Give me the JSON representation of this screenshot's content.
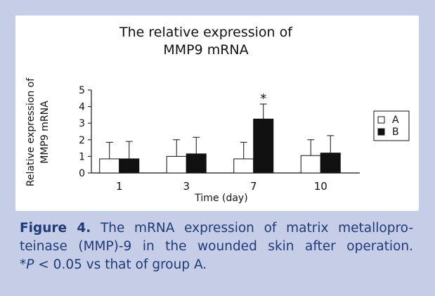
{
  "chart_data": {
    "type": "bar",
    "title": [
      "The relative expression of",
      "MMP9 mRNA"
    ],
    "y_label": [
      "Relative expression of",
      "MMP9 mRNA"
    ],
    "x_label": "Time (day)",
    "categories": [
      "1",
      "3",
      "7",
      "10"
    ],
    "series": [
      {
        "name": "A",
        "color": "#ffffff",
        "values": [
          0.85,
          1.0,
          0.85,
          1.05
        ],
        "errors": [
          1.0,
          1.0,
          1.0,
          0.95
        ]
      },
      {
        "name": "B",
        "color": "#111111",
        "values": [
          0.85,
          1.15,
          3.25,
          1.2
        ],
        "errors": [
          1.05,
          1.0,
          0.9,
          1.05
        ]
      }
    ],
    "annotation": {
      "text": "*",
      "category": 2,
      "series": 1
    },
    "ylim": [
      0,
      5
    ],
    "yticks": [
      0,
      1,
      2,
      3,
      4,
      5
    ],
    "grid": false,
    "legend": "right"
  },
  "caption": {
    "label": "Figure 4.",
    "lines": [
      "The mRNA expression of matrix metallopro-",
      "teinase (MMP)-9 in the wounded skin after operation."
    ],
    "note_star": "*",
    "note_p": "P",
    "note_rest": " < 0.05 vs that of group A."
  }
}
